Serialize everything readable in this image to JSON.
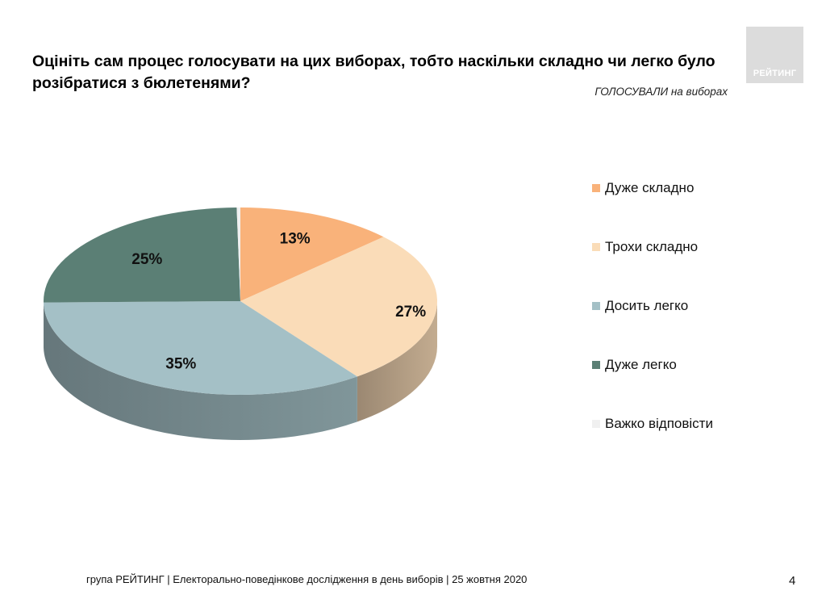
{
  "header": {
    "title": "Оцініть сам процес голосувати на цих виборах, тобто наскільки складно чи легко було розібратися з бюлетенями?",
    "subtitle": "ГОЛОСУВАЛИ на виборах",
    "logo_text": "РЕЙТИНГ"
  },
  "chart_data": {
    "type": "pie",
    "style": "3d",
    "slices": [
      {
        "label": "Дуже складно",
        "value": 13,
        "display": "13%",
        "color": "#f9b27a"
      },
      {
        "label": "Трохи складно",
        "value": 27,
        "display": "27%",
        "color": "#fadcb8"
      },
      {
        "label": "Досить легко",
        "value": 35,
        "display": "35%",
        "color": "#a4c0c6"
      },
      {
        "label": "Дуже легко",
        "value": 25,
        "display": "25%",
        "color": "#5b7f75"
      },
      {
        "label": "Важко відповісти",
        "value": 0.3,
        "display": "",
        "color": "#f0f0f0"
      }
    ],
    "legend_position": "right"
  },
  "footer": {
    "text": "група РЕЙТИНГ | Електорально-поведінкове дослідження в день виборів | 25 жовтня 2020",
    "page": "4"
  }
}
